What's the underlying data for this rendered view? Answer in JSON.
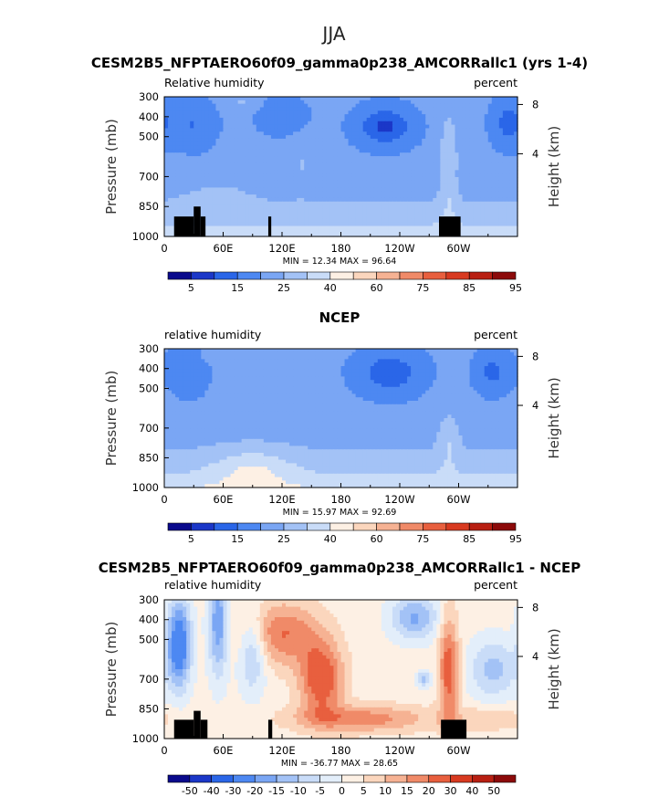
{
  "page_title": "JJA",
  "chart_data": [
    {
      "type": "heatmap",
      "title": "CESM2B5_NFPTAERO60f09_gamma0p238_AMCORRallc1 (yrs 1-4)",
      "left_label": "Relative humidity",
      "right_label": "percent",
      "ylabel": "Pressure (mb)",
      "ylabel_right": "Height (km)",
      "x_ticks": [
        "0",
        "60E",
        "120E",
        "180",
        "120W",
        "60W"
      ],
      "x_tick_values": [
        0,
        60,
        120,
        180,
        240,
        300
      ],
      "xlim": [
        0,
        360
      ],
      "y_ticks": [
        "300",
        "400",
        "500",
        "700",
        "850",
        "1000"
      ],
      "y_tick_values": [
        300,
        400,
        500,
        700,
        850,
        1000
      ],
      "ylim": [
        1000,
        300
      ],
      "height_ticks": [
        "8",
        "4"
      ],
      "height_tick_values": [
        8,
        4
      ],
      "min_max_text": "MIN =   12.34   MAX =   96.64",
      "min": 12.34,
      "max": 96.64,
      "colorbar_labels": [
        "5",
        "15",
        "25",
        "40",
        "60",
        "75",
        "85",
        "95"
      ],
      "colors": [
        "#0a0a8c",
        "#1b37c8",
        "#2a66e8",
        "#4d88f2",
        "#7aa6f4",
        "#a3c2f6",
        "#c9dcf8",
        "#fdf0e4",
        "#fbd6bd",
        "#f6b293",
        "#f08a68",
        "#e85f3e",
        "#d83a20",
        "#b81f12",
        "#8c0a0a"
      ],
      "terrain_color": "#000000"
    },
    {
      "type": "heatmap",
      "title": "NCEP",
      "left_label": "relative humidity",
      "right_label": "percent",
      "ylabel": "Pressure (mb)",
      "ylabel_right": "Height (km)",
      "x_ticks": [
        "0",
        "60E",
        "120E",
        "180",
        "120W",
        "60W"
      ],
      "x_tick_values": [
        0,
        60,
        120,
        180,
        240,
        300
      ],
      "xlim": [
        0,
        360
      ],
      "y_ticks": [
        "300",
        "400",
        "500",
        "700",
        "850",
        "1000"
      ],
      "y_tick_values": [
        300,
        400,
        500,
        700,
        850,
        1000
      ],
      "ylim": [
        1000,
        300
      ],
      "height_ticks": [
        "8",
        "4"
      ],
      "height_tick_values": [
        8,
        4
      ],
      "min_max_text": "MIN =   15.97   MAX =   92.69",
      "min": 15.97,
      "max": 92.69,
      "colorbar_labels": [
        "5",
        "15",
        "25",
        "40",
        "60",
        "75",
        "85",
        "95"
      ],
      "colors": [
        "#0a0a8c",
        "#1b37c8",
        "#2a66e8",
        "#4d88f2",
        "#7aa6f4",
        "#a3c2f6",
        "#c9dcf8",
        "#fdf0e4",
        "#fbd6bd",
        "#f6b293",
        "#f08a68",
        "#e85f3e",
        "#d83a20",
        "#b81f12",
        "#8c0a0a"
      ]
    },
    {
      "type": "heatmap",
      "title": "CESM2B5_NFPTAERO60f09_gamma0p238_AMCORRallc1 - NCEP",
      "left_label": "relative humidity",
      "right_label": "percent",
      "ylabel": "Pressure (mb)",
      "ylabel_right": "Height (km)",
      "x_ticks": [
        "0",
        "60E",
        "120E",
        "180",
        "120W",
        "60W"
      ],
      "x_tick_values": [
        0,
        60,
        120,
        180,
        240,
        300
      ],
      "xlim": [
        0,
        360
      ],
      "y_ticks": [
        "300",
        "400",
        "500",
        "700",
        "850",
        "1000"
      ],
      "y_tick_values": [
        300,
        400,
        500,
        700,
        850,
        1000
      ],
      "ylim": [
        1000,
        300
      ],
      "height_ticks": [
        "8",
        "4"
      ],
      "height_tick_values": [
        8,
        4
      ],
      "min_max_text": "MIN = -36.77   MAX =   28.65",
      "min": -36.77,
      "max": 28.65,
      "colorbar_labels": [
        "-50",
        "-40",
        "-30",
        "-20",
        "-15",
        "-10",
        "-5",
        "0",
        "5",
        "10",
        "15",
        "20",
        "30",
        "40",
        "50"
      ],
      "colors": [
        "#0a0a8c",
        "#1b37c8",
        "#2a66e8",
        "#4d88f2",
        "#7aa6f4",
        "#a3c2f6",
        "#c9dcf8",
        "#e3eefa",
        "#fdf0e4",
        "#fbd6bd",
        "#f6b293",
        "#f08a68",
        "#e85f3e",
        "#d83a20",
        "#b81f12",
        "#8c0a0a"
      ],
      "terrain_color": "#000000"
    }
  ]
}
